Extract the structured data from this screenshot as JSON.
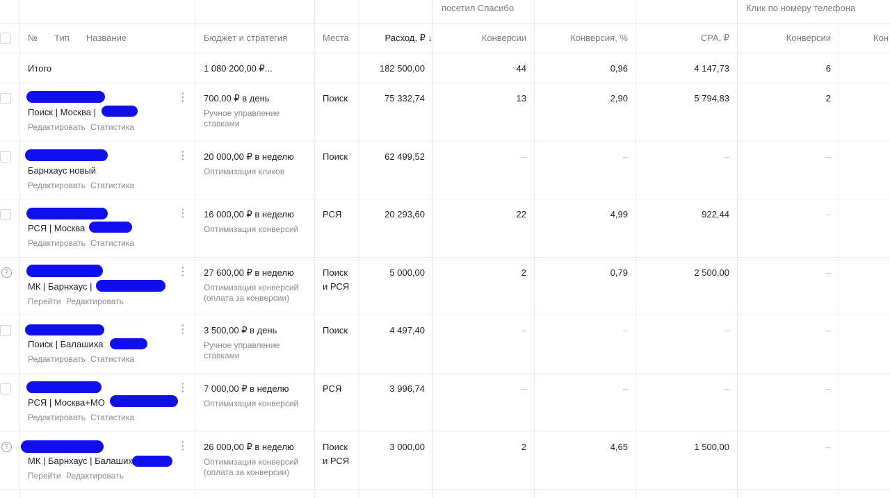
{
  "header_groups": {
    "visited_thanks": "посетил Спасибо",
    "phone_click": "Клик по номеру телефона"
  },
  "columns": {
    "number": "№",
    "type": "Тип",
    "name": "Название",
    "budget": "Бюджет и стратегия",
    "places": "Места",
    "expense": "Расход, ₽ ↓",
    "conversions": "Конверсии",
    "conversion_rate": "Конверсия, %",
    "cpa": "CPA, ₽",
    "conversions2": "Конверсии",
    "partial": "Кон"
  },
  "total": {
    "label": "Итого",
    "budget": "1 080 200,00 ₽...",
    "expense": "182 500,00",
    "conversions": "44",
    "conversion_rate": "0,96",
    "cpa": "4 147,73",
    "conversions2": "6"
  },
  "rows": [
    {
      "name": "Поиск | Москва |",
      "actions": [
        "Редактировать",
        "Статистика"
      ],
      "budget": "700,00 ₽ в день",
      "strategy": [
        "Ручное управление",
        "ставками"
      ],
      "places": [
        "Поиск"
      ],
      "expense": "75 332,74",
      "conversions": "13",
      "conversion_rate": "2,90",
      "cpa": "5 794,83",
      "conversions2": "2"
    },
    {
      "name": "Барнхаус новый",
      "actions": [
        "Редактировать",
        "Статистика"
      ],
      "budget": "20 000,00 ₽ в неделю",
      "strategy": [
        "Оптимизация кликов"
      ],
      "places": [
        "Поиск"
      ],
      "expense": "62 499,52",
      "conversions": "–",
      "conversion_rate": "–",
      "cpa": "–",
      "conversions2": "–"
    },
    {
      "name": "РСЯ | Москва",
      "actions": [
        "Редактировать",
        "Статистика"
      ],
      "budget": "16 000,00 ₽ в неделю",
      "strategy": [
        "Оптимизация конверсий"
      ],
      "places": [
        "РСЯ"
      ],
      "expense": "20 293,60",
      "conversions": "22",
      "conversion_rate": "4,99",
      "cpa": "922,44",
      "conversions2": "–"
    },
    {
      "name": "МК | Барнхаус |",
      "actions": [
        "Перейти",
        "Редактировать"
      ],
      "budget": "27 600,00 ₽ в неделю",
      "strategy": [
        "Оптимизация конверсий",
        "(оплата за конверсии)"
      ],
      "places": [
        "Поиск",
        "и РСЯ"
      ],
      "expense": "5 000,00",
      "conversions": "2",
      "conversion_rate": "0,79",
      "cpa": "2 500,00",
      "conversions2": "–"
    },
    {
      "name": "Поиск | Балашиха",
      "actions": [
        "Редактировать",
        "Статистика"
      ],
      "budget": "3 500,00 ₽ в день",
      "strategy": [
        "Ручное управление",
        "ставками"
      ],
      "places": [
        "Поиск"
      ],
      "expense": "4 497,40",
      "conversions": "–",
      "conversion_rate": "–",
      "cpa": "–",
      "conversions2": "–"
    },
    {
      "name": "РСЯ | Москва+МО",
      "actions": [
        "Редактировать",
        "Статистика"
      ],
      "budget": "7 000,00 ₽ в неделю",
      "strategy": [
        "Оптимизация конверсий"
      ],
      "places": [
        "РСЯ"
      ],
      "expense": "3 996,74",
      "conversions": "–",
      "conversion_rate": "–",
      "cpa": "–",
      "conversions2": "–"
    },
    {
      "name": "МК | Барнхаус | Балашиха",
      "actions": [
        "Перейти",
        "Редактировать"
      ],
      "budget": "26 000,00 ₽ в неделю",
      "strategy": [
        "Оптимизация конверсий",
        "(оплата за конверсии)"
      ],
      "places": [
        "Поиск",
        "и РСЯ"
      ],
      "expense": "3 000,00",
      "conversions": "2",
      "conversion_rate": "4,65",
      "cpa": "1 500,00",
      "conversions2": "–"
    }
  ],
  "colors": {
    "grid": "#ececec",
    "muted_text": "#8a8a8a",
    "redaction": "#1010ee"
  }
}
